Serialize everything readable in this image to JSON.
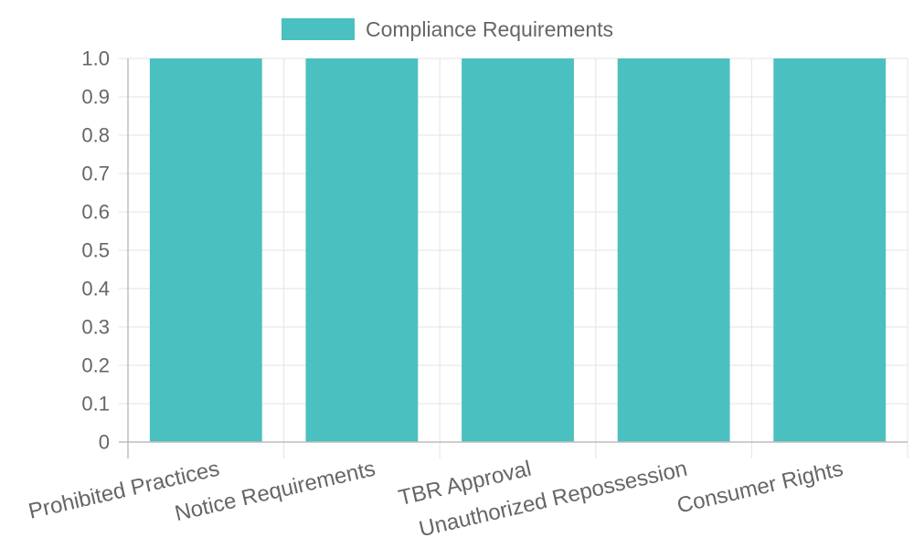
{
  "chart_data": {
    "type": "bar",
    "categories": [
      "Prohibited Practices",
      "Notice Requirements",
      "TBR Approval",
      "Unauthorized Repossession",
      "Consumer Rights"
    ],
    "series": [
      {
        "name": "Compliance Requirements",
        "values": [
          1,
          1,
          1,
          1,
          1
        ],
        "color": "#4bc0c0"
      }
    ],
    "ylim": [
      0,
      1
    ],
    "y_ticks": [
      "0",
      "0.1",
      "0.2",
      "0.3",
      "0.4",
      "0.5",
      "0.6",
      "0.7",
      "0.8",
      "0.9",
      "1.0"
    ],
    "grid": true,
    "legend_position": "top-center",
    "title": "",
    "xlabel": "",
    "ylabel": ""
  }
}
